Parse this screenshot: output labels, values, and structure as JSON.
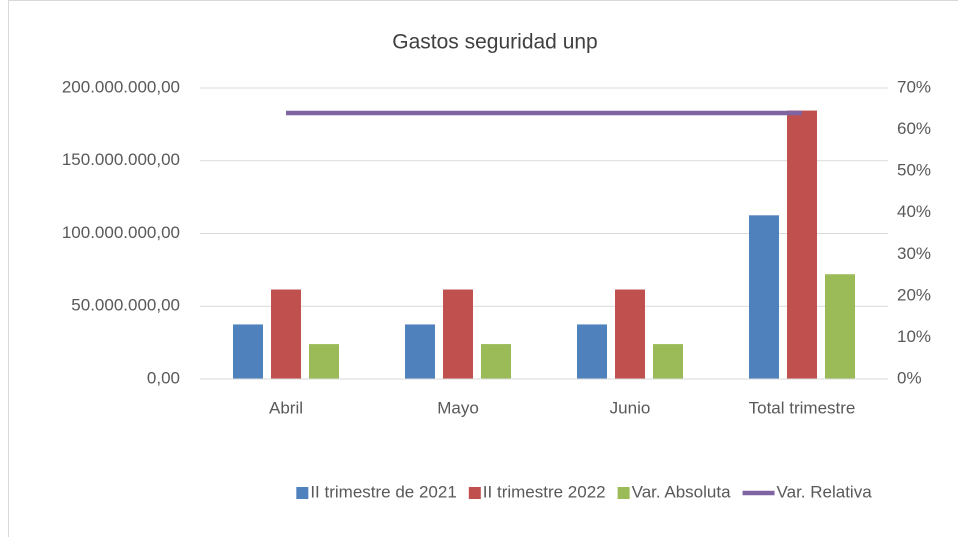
{
  "chart_data": {
    "type": "bar",
    "title": "Gastos seguridad unp",
    "categories": [
      "Abril",
      "Mayo",
      "Junio",
      "Total trimestre"
    ],
    "series": [
      {
        "name": "II trimestre de 2021",
        "color": "#4f81bd",
        "values": [
          37500000,
          37500000,
          37500000,
          112500000
        ]
      },
      {
        "name": "II trimestre 2022",
        "color": "#c0504d",
        "values": [
          61500000,
          61500000,
          61500000,
          184500000
        ]
      },
      {
        "name": "Var. Absoluta",
        "color": "#9bbb59",
        "values": [
          24000000,
          24000000,
          24000000,
          72000000
        ]
      },
      {
        "name": "Var. Relativa",
        "color": "#8064a2",
        "type": "line",
        "axis": "y2",
        "values": [
          64,
          64,
          64,
          64
        ]
      }
    ],
    "ylim": [
      0,
      200000000
    ],
    "yticks": [
      {
        "value": 0,
        "label": "0,00"
      },
      {
        "value": 50000000,
        "label": "50.000.000,00"
      },
      {
        "value": 100000000,
        "label": "100.000.000,00"
      },
      {
        "value": 150000000,
        "label": "150.000.000,00"
      },
      {
        "value": 200000000,
        "label": "200.000.000,00"
      }
    ],
    "y2lim": [
      0,
      70
    ],
    "y2ticks": [
      {
        "value": 0,
        "label": "0%"
      },
      {
        "value": 10,
        "label": "10%"
      },
      {
        "value": 20,
        "label": "20%"
      },
      {
        "value": 30,
        "label": "30%"
      },
      {
        "value": 40,
        "label": "40%"
      },
      {
        "value": 50,
        "label": "50%"
      },
      {
        "value": 60,
        "label": "60%"
      },
      {
        "value": 70,
        "label": "70%"
      }
    ],
    "grid": true,
    "legend": "bottom"
  }
}
